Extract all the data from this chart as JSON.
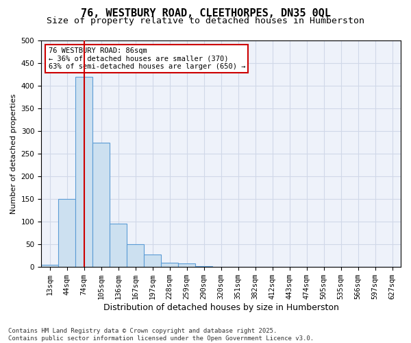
{
  "title": "76, WESTBURY ROAD, CLEETHORPES, DN35 0QL",
  "subtitle": "Size of property relative to detached houses in Humberston",
  "xlabel": "Distribution of detached houses by size in Humberston",
  "ylabel": "Number of detached properties",
  "bins": [
    "13sqm",
    "44sqm",
    "74sqm",
    "105sqm",
    "136sqm",
    "167sqm",
    "197sqm",
    "228sqm",
    "259sqm",
    "290sqm",
    "320sqm",
    "351sqm",
    "382sqm",
    "412sqm",
    "443sqm",
    "474sqm",
    "505sqm",
    "535sqm",
    "566sqm",
    "597sqm",
    "627sqm"
  ],
  "values": [
    5,
    150,
    420,
    275,
    95,
    50,
    27,
    10,
    8,
    2,
    0,
    0,
    0,
    0,
    0,
    0,
    0,
    0,
    0,
    0,
    0
  ],
  "bar_color": "#cce0f0",
  "bar_edge_color": "#5b9bd5",
  "red_line_x": 2,
  "annotation_text": "76 WESTBURY ROAD: 86sqm\n← 36% of detached houses are smaller (370)\n63% of semi-detached houses are larger (650) →",
  "annotation_box_color": "#ffffff",
  "annotation_box_edge": "#cc0000",
  "grid_color": "#d0d8e8",
  "background_color": "#eef2fa",
  "title_fontsize": 11,
  "subtitle_fontsize": 9.5,
  "tick_fontsize": 7.5,
  "footer": "Contains HM Land Registry data © Crown copyright and database right 2025.\nContains public sector information licensed under the Open Government Licence v3.0.",
  "ylim": [
    0,
    500
  ],
  "yticks": [
    0,
    50,
    100,
    150,
    200,
    250,
    300,
    350,
    400,
    450,
    500
  ]
}
